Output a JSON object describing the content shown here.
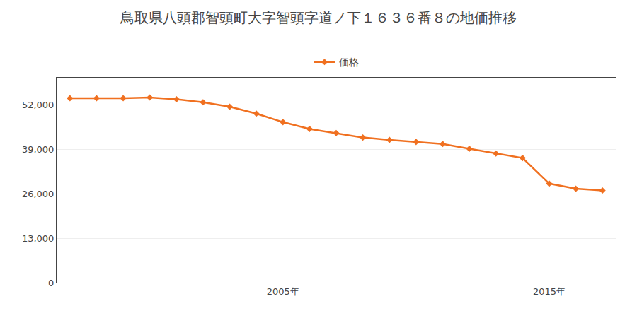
{
  "chart_data": {
    "type": "line",
    "title": "鳥取県八頭郡智頭町大字智頭字道ノ下１６３６番８の地価推移",
    "x": [
      1997,
      1998,
      1999,
      2000,
      2001,
      2002,
      2003,
      2004,
      2005,
      2006,
      2007,
      2008,
      2009,
      2010,
      2011,
      2012,
      2013,
      2014,
      2015,
      2016,
      2017
    ],
    "series": [
      {
        "name": "価格",
        "color": "#f07020",
        "marker": "diamond",
        "values": [
          54000,
          54000,
          54000,
          54200,
          53700,
          52800,
          51500,
          49500,
          47000,
          45000,
          43800,
          42500,
          41800,
          41200,
          40600,
          39200,
          37800,
          36500,
          29000,
          27500,
          27000
        ]
      }
    ],
    "xlim": [
      1996.5,
      2017.5
    ],
    "xticks": [
      {
        "value": 2005,
        "label": "2005年"
      },
      {
        "value": 2015,
        "label": "2015年"
      }
    ],
    "ylim": [
      0,
      60000
    ],
    "yticks": [
      0,
      {
        "value": 13000,
        "label": "13,000"
      },
      {
        "value": 26000,
        "label": "26,000"
      },
      {
        "value": 39000,
        "label": "39,000"
      },
      {
        "value": 52000,
        "label": "52,000"
      }
    ],
    "grid": true,
    "legend": "top"
  }
}
